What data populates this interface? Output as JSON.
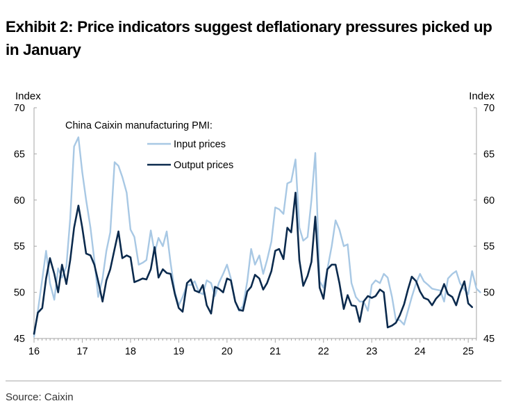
{
  "exhibit": {
    "title": "Exhibit 2: Price indicators suggest deflationary pressures picked up in January",
    "source": "Source: Caixin"
  },
  "colors": {
    "input": "#a8c8e4",
    "output": "#0b2a4d",
    "axis": "#a6a6a6"
  },
  "chart_data": {
    "type": "line",
    "title": "",
    "legend_title": "China Caixin manufacturing PMI:",
    "legend_position": "top-left",
    "grid": false,
    "ylabel_left": "Index",
    "ylabel_right": "Index",
    "ylim": [
      45,
      70
    ],
    "yticks": [
      45,
      50,
      55,
      60,
      65,
      70
    ],
    "xlim": [
      2016.0,
      2025.17
    ],
    "xticks": [
      {
        "label": "16",
        "x": 2016
      },
      {
        "label": "17",
        "x": 2017
      },
      {
        "label": "18",
        "x": 2018
      },
      {
        "label": "19",
        "x": 2019
      },
      {
        "label": "20",
        "x": 2020
      },
      {
        "label": "21",
        "x": 2021
      },
      {
        "label": "22",
        "x": 2022
      },
      {
        "label": "23",
        "x": 2023
      },
      {
        "label": "24",
        "x": 2024
      },
      {
        "label": "25",
        "x": 2025
      }
    ],
    "series": [
      {
        "name": "Input prices",
        "color": "#a8c8e4",
        "points": [
          [
            2016.0,
            45.2
          ],
          [
            2016.08,
            48.0
          ],
          [
            2016.17,
            51.4
          ],
          [
            2016.25,
            54.5
          ],
          [
            2016.33,
            51.0
          ],
          [
            2016.42,
            49.2
          ],
          [
            2016.5,
            52.6
          ],
          [
            2016.58,
            51.6
          ],
          [
            2016.67,
            52.8
          ],
          [
            2016.75,
            58.0
          ],
          [
            2016.83,
            65.8
          ],
          [
            2016.92,
            66.8
          ],
          [
            2017.0,
            63.0
          ],
          [
            2017.08,
            60.0
          ],
          [
            2017.17,
            57.0
          ],
          [
            2017.25,
            53.5
          ],
          [
            2017.33,
            49.5
          ],
          [
            2017.42,
            51.5
          ],
          [
            2017.5,
            54.5
          ],
          [
            2017.58,
            56.5
          ],
          [
            2017.67,
            64.1
          ],
          [
            2017.75,
            63.7
          ],
          [
            2017.83,
            62.5
          ],
          [
            2017.92,
            60.8
          ],
          [
            2018.0,
            56.8
          ],
          [
            2018.08,
            56.0
          ],
          [
            2018.17,
            53.0
          ],
          [
            2018.25,
            53.2
          ],
          [
            2018.33,
            53.5
          ],
          [
            2018.42,
            56.7
          ],
          [
            2018.5,
            54.3
          ],
          [
            2018.58,
            55.9
          ],
          [
            2018.67,
            55.0
          ],
          [
            2018.75,
            56.6
          ],
          [
            2018.83,
            53.2
          ],
          [
            2018.92,
            50.0
          ],
          [
            2019.0,
            48.6
          ],
          [
            2019.08,
            49.5
          ],
          [
            2019.17,
            50.8
          ],
          [
            2019.25,
            50.8
          ],
          [
            2019.33,
            51.2
          ],
          [
            2019.42,
            50.0
          ],
          [
            2019.5,
            49.8
          ],
          [
            2019.58,
            51.3
          ],
          [
            2019.67,
            51.0
          ],
          [
            2019.75,
            49.6
          ],
          [
            2019.83,
            51.0
          ],
          [
            2019.92,
            52.0
          ],
          [
            2020.0,
            53.0
          ],
          [
            2020.08,
            51.5
          ],
          [
            2020.17,
            49.0
          ],
          [
            2020.25,
            48.0
          ],
          [
            2020.33,
            48.5
          ],
          [
            2020.42,
            51.2
          ],
          [
            2020.5,
            54.7
          ],
          [
            2020.58,
            53.0
          ],
          [
            2020.67,
            54.0
          ],
          [
            2020.75,
            52.0
          ],
          [
            2020.83,
            53.5
          ],
          [
            2020.92,
            55.5
          ],
          [
            2021.0,
            59.2
          ],
          [
            2021.08,
            59.0
          ],
          [
            2021.17,
            58.5
          ],
          [
            2021.25,
            61.8
          ],
          [
            2021.33,
            62.0
          ],
          [
            2021.42,
            64.4
          ],
          [
            2021.5,
            57.0
          ],
          [
            2021.58,
            55.6
          ],
          [
            2021.67,
            56.0
          ],
          [
            2021.75,
            60.0
          ],
          [
            2021.83,
            65.1
          ],
          [
            2021.92,
            51.2
          ],
          [
            2022.0,
            50.5
          ],
          [
            2022.08,
            52.5
          ],
          [
            2022.17,
            55.0
          ],
          [
            2022.25,
            57.8
          ],
          [
            2022.33,
            56.8
          ],
          [
            2022.42,
            55.0
          ],
          [
            2022.5,
            55.2
          ],
          [
            2022.58,
            51.0
          ],
          [
            2022.67,
            49.5
          ],
          [
            2022.75,
            49.0
          ],
          [
            2022.83,
            49.0
          ],
          [
            2022.92,
            48.0
          ],
          [
            2023.0,
            50.8
          ],
          [
            2023.08,
            51.3
          ],
          [
            2023.17,
            51.0
          ],
          [
            2023.25,
            52.0
          ],
          [
            2023.33,
            51.6
          ],
          [
            2023.42,
            49.5
          ],
          [
            2023.5,
            47.0
          ],
          [
            2023.58,
            47.0
          ],
          [
            2023.67,
            46.5
          ],
          [
            2023.75,
            48.0
          ],
          [
            2023.83,
            49.5
          ],
          [
            2023.92,
            51.0
          ],
          [
            2024.0,
            52.0
          ],
          [
            2024.08,
            51.2
          ],
          [
            2024.17,
            50.8
          ],
          [
            2024.25,
            50.4
          ],
          [
            2024.33,
            50.3
          ],
          [
            2024.42,
            50.2
          ],
          [
            2024.5,
            49.0
          ],
          [
            2024.58,
            51.5
          ],
          [
            2024.67,
            52.0
          ],
          [
            2024.75,
            52.3
          ],
          [
            2024.83,
            51.0
          ],
          [
            2024.92,
            50.3
          ],
          [
            2025.0,
            49.8
          ],
          [
            2025.08,
            52.3
          ],
          [
            2025.17,
            50.4
          ],
          [
            2025.25,
            50.0
          ]
        ]
      },
      {
        "name": "Output prices",
        "color": "#0b2a4d",
        "points": [
          [
            2016.0,
            45.5
          ],
          [
            2016.08,
            47.8
          ],
          [
            2016.17,
            48.3
          ],
          [
            2016.25,
            51.5
          ],
          [
            2016.33,
            53.7
          ],
          [
            2016.42,
            52.0
          ],
          [
            2016.5,
            50.0
          ],
          [
            2016.58,
            53.0
          ],
          [
            2016.67,
            50.9
          ],
          [
            2016.75,
            53.5
          ],
          [
            2016.83,
            57.0
          ],
          [
            2016.92,
            59.4
          ],
          [
            2017.0,
            57.0
          ],
          [
            2017.08,
            54.2
          ],
          [
            2017.17,
            54.0
          ],
          [
            2017.25,
            53.0
          ],
          [
            2017.33,
            51.2
          ],
          [
            2017.42,
            49.0
          ],
          [
            2017.5,
            51.3
          ],
          [
            2017.58,
            52.5
          ],
          [
            2017.67,
            54.7
          ],
          [
            2017.75,
            56.6
          ],
          [
            2017.83,
            53.7
          ],
          [
            2017.92,
            54.0
          ],
          [
            2018.0,
            53.8
          ],
          [
            2018.08,
            51.1
          ],
          [
            2018.17,
            51.3
          ],
          [
            2018.25,
            51.5
          ],
          [
            2018.33,
            51.4
          ],
          [
            2018.42,
            52.5
          ],
          [
            2018.5,
            54.9
          ],
          [
            2018.58,
            51.6
          ],
          [
            2018.67,
            52.5
          ],
          [
            2018.75,
            52.1
          ],
          [
            2018.83,
            52.0
          ],
          [
            2018.92,
            49.8
          ],
          [
            2019.0,
            48.3
          ],
          [
            2019.08,
            47.9
          ],
          [
            2019.17,
            51.0
          ],
          [
            2019.25,
            51.4
          ],
          [
            2019.33,
            50.2
          ],
          [
            2019.42,
            50.0
          ],
          [
            2019.5,
            50.8
          ],
          [
            2019.58,
            48.6
          ],
          [
            2019.67,
            47.7
          ],
          [
            2019.75,
            50.6
          ],
          [
            2019.83,
            50.4
          ],
          [
            2019.92,
            50.0
          ],
          [
            2020.0,
            51.5
          ],
          [
            2020.08,
            51.3
          ],
          [
            2020.17,
            49.0
          ],
          [
            2020.25,
            48.1
          ],
          [
            2020.33,
            48.0
          ],
          [
            2020.42,
            50.1
          ],
          [
            2020.5,
            50.6
          ],
          [
            2020.58,
            51.9
          ],
          [
            2020.67,
            51.5
          ],
          [
            2020.75,
            50.3
          ],
          [
            2020.83,
            51.0
          ],
          [
            2020.92,
            52.3
          ],
          [
            2021.0,
            54.5
          ],
          [
            2021.08,
            54.7
          ],
          [
            2021.17,
            53.6
          ],
          [
            2021.25,
            57.0
          ],
          [
            2021.33,
            56.5
          ],
          [
            2021.42,
            60.8
          ],
          [
            2021.5,
            53.5
          ],
          [
            2021.58,
            50.7
          ],
          [
            2021.67,
            51.8
          ],
          [
            2021.75,
            53.3
          ],
          [
            2021.83,
            58.2
          ],
          [
            2021.92,
            50.5
          ],
          [
            2022.0,
            49.3
          ],
          [
            2022.08,
            52.5
          ],
          [
            2022.17,
            53.0
          ],
          [
            2022.25,
            53.0
          ],
          [
            2022.33,
            51.0
          ],
          [
            2022.42,
            48.2
          ],
          [
            2022.5,
            49.7
          ],
          [
            2022.58,
            48.6
          ],
          [
            2022.67,
            48.5
          ],
          [
            2022.75,
            46.8
          ],
          [
            2022.83,
            49.0
          ],
          [
            2022.92,
            49.6
          ],
          [
            2023.0,
            49.4
          ],
          [
            2023.08,
            49.6
          ],
          [
            2023.17,
            50.3
          ],
          [
            2023.25,
            50.0
          ],
          [
            2023.33,
            46.2
          ],
          [
            2023.42,
            46.4
          ],
          [
            2023.5,
            46.7
          ],
          [
            2023.58,
            47.5
          ],
          [
            2023.67,
            48.7
          ],
          [
            2023.75,
            50.3
          ],
          [
            2023.83,
            51.7
          ],
          [
            2023.92,
            51.2
          ],
          [
            2024.0,
            50.1
          ],
          [
            2024.08,
            49.4
          ],
          [
            2024.17,
            49.2
          ],
          [
            2024.25,
            48.6
          ],
          [
            2024.33,
            49.3
          ],
          [
            2024.42,
            49.8
          ],
          [
            2024.5,
            50.9
          ],
          [
            2024.58,
            49.8
          ],
          [
            2024.67,
            49.5
          ],
          [
            2024.75,
            48.6
          ],
          [
            2024.83,
            50.0
          ],
          [
            2024.92,
            51.2
          ],
          [
            2025.0,
            48.8
          ],
          [
            2025.08,
            48.4
          ]
        ]
      }
    ]
  }
}
